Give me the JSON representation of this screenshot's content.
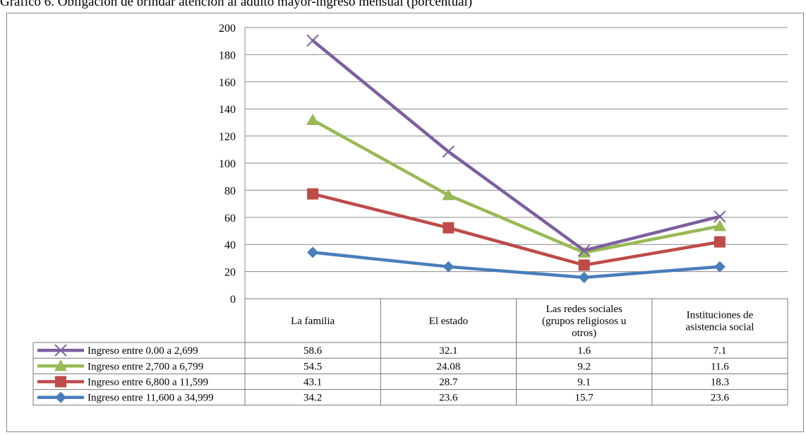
{
  "page": {
    "title": "Gráfico 6. Obligación de brindar atención al adulto mayor-ingreso mensual (porcentual)"
  },
  "chart_data": {
    "type": "line",
    "title": "Gráfico 6. Obligación de brindar atención al adulto mayor-ingreso mensual (porcentual)",
    "categories": [
      [
        "La familia"
      ],
      [
        "El estado"
      ],
      [
        "Las redes  sociales",
        "(grupos religiosos u",
        "otros)"
      ],
      [
        "Instituciones de",
        "asistencia social"
      ]
    ],
    "stacked": true,
    "ylim": [
      0,
      200
    ],
    "yticks": [
      "0",
      "20",
      "40",
      "60",
      "80",
      "100",
      "120",
      "140",
      "160",
      "180",
      "200"
    ],
    "grid": true,
    "legend": "data-table",
    "series": [
      {
        "name": "Ingreso entre 11,600 a 34,999",
        "values": [
          34.2,
          23.6,
          15.7,
          23.6
        ],
        "labels": [
          "34.2",
          "23.6",
          "15.7",
          "23.6"
        ],
        "color": "#4a7ebb",
        "marker": "diamond"
      },
      {
        "name": "Ingreso entre 6,800 a 11,599",
        "values": [
          43.1,
          28.7,
          9.1,
          18.3
        ],
        "labels": [
          "43.1",
          "28.7",
          "9.1",
          "18.3"
        ],
        "color": "#be4b48",
        "marker": "square"
      },
      {
        "name": "Ingreso entre 2,700 a 6,799",
        "values": [
          54.5,
          24.08,
          9.2,
          11.6
        ],
        "labels": [
          "54.5",
          "24.08",
          "9.2",
          "11.6"
        ],
        "color": "#98b954",
        "marker": "triangle"
      },
      {
        "name": "Ingreso entre 0.00 a 2,699",
        "values": [
          58.6,
          32.1,
          1.6,
          7.1
        ],
        "labels": [
          "58.6",
          "32.1",
          "1.6",
          "7.1"
        ],
        "color": "#7d5fa0",
        "marker": "x"
      }
    ]
  }
}
